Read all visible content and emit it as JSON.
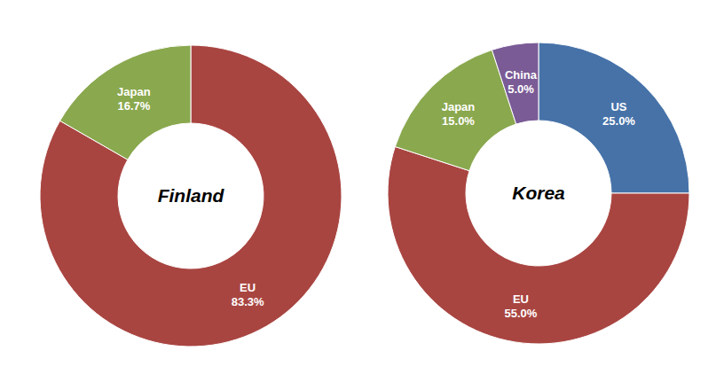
{
  "chart_data": [
    {
      "type": "pie",
      "title": "Finland",
      "categories": [
        "EU",
        "Japan"
      ],
      "values": [
        83.3,
        16.7
      ],
      "value_labels": [
        "83.3%",
        "16.7%"
      ],
      "colors": [
        "#a94541",
        "#8aa84e"
      ],
      "data_labels": true
    },
    {
      "type": "pie",
      "title": "Korea",
      "categories": [
        "US",
        "EU",
        "Japan",
        "China"
      ],
      "values": [
        25.0,
        55.0,
        15.0,
        5.0
      ],
      "value_labels": [
        "25.0%",
        "55.0%",
        "15.0%",
        "5.0%"
      ],
      "colors": [
        "#4672a8",
        "#a94541",
        "#8aa84e",
        "#7a5b96"
      ],
      "data_labels": true
    }
  ]
}
